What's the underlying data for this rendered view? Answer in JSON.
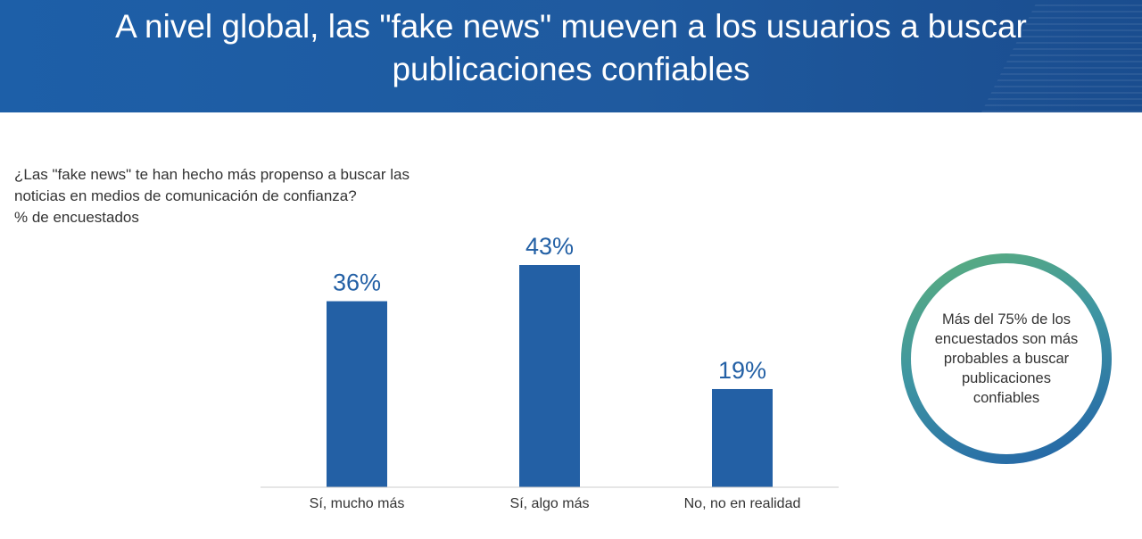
{
  "header": {
    "title": "A nivel global, las \"fake news\" mueven a los usuarios a buscar publicaciones confiables"
  },
  "question": {
    "line1": "¿Las \"fake news\" te han hecho más propenso a buscar las",
    "line2": "noticias en medios de comunicación de confianza?",
    "unit": "% de encuestados"
  },
  "callout": {
    "text": "Más del 75% de los encuestados son más probables a buscar publicaciones confiables"
  },
  "colors": {
    "bar": "#2360a5",
    "label": "#2360a5",
    "header": "#1d5fa8",
    "axis": "#cccccc"
  },
  "chart_data": {
    "type": "bar",
    "categories": [
      "Sí, mucho más",
      "Sí, algo más",
      "No, no en realidad"
    ],
    "values": [
      36,
      43,
      19
    ],
    "data_labels": [
      "36%",
      "43%",
      "19%"
    ],
    "title": "",
    "xlabel": "",
    "ylabel": "",
    "ylim": [
      0,
      43
    ],
    "grid": false,
    "legend": "none"
  }
}
